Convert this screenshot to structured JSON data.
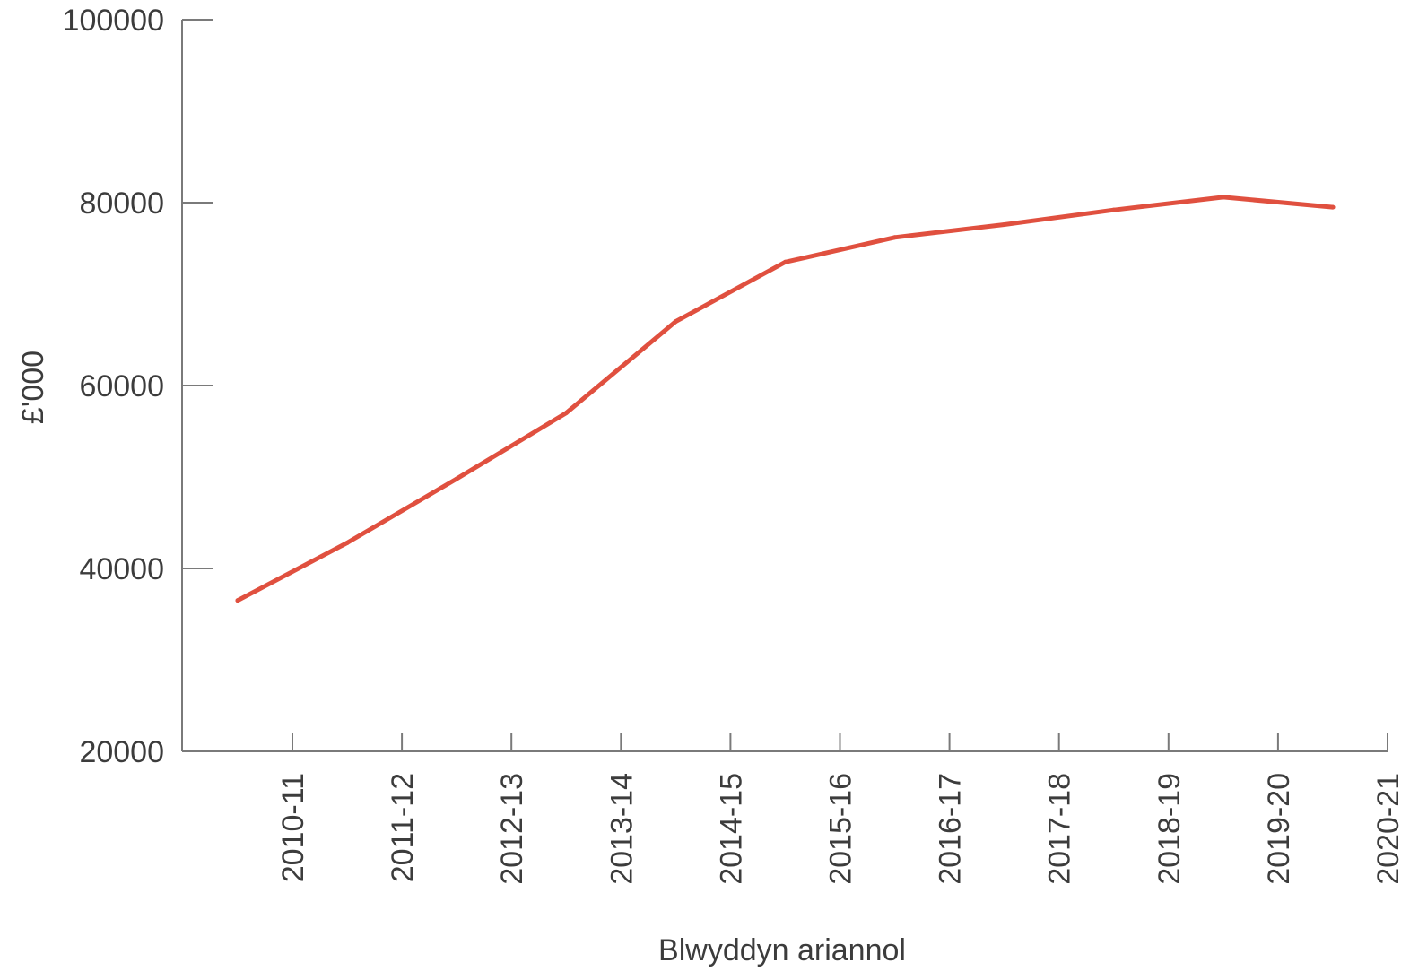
{
  "chart_data": {
    "type": "line",
    "categories": [
      "2010-11",
      "2011-12",
      "2012-13",
      "2013-14",
      "2014-15",
      "2015-16",
      "2016-17",
      "2017-18",
      "2018-19",
      "2019-20",
      "2020-21"
    ],
    "series": [
      {
        "values": [
          36500,
          42800,
          49800,
          57000,
          67000,
          73500,
          76200,
          77600,
          79200,
          80600,
          79500
        ]
      }
    ],
    "xlabel": "Blwyddyn ariannol",
    "ylabel": "£'000",
    "ylim": [
      20000,
      100000
    ],
    "yticks": [
      20000,
      40000,
      60000,
      80000,
      100000
    ],
    "grid": false,
    "line_color": "#e0503f",
    "axis_color": "#7a7a7a",
    "text_color": "#3c3c3c"
  }
}
